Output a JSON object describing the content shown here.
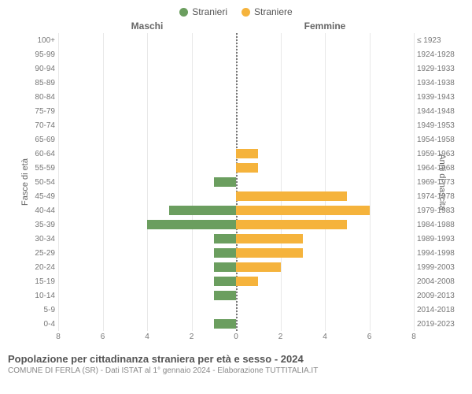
{
  "legend": {
    "male": {
      "label": "Stranieri",
      "color": "#6b9e5f"
    },
    "female": {
      "label": "Straniere",
      "color": "#f5b33c"
    }
  },
  "headers": {
    "left": "Maschi",
    "right": "Femmine"
  },
  "axis_titles": {
    "left": "Fasce di età",
    "right": "Anni di nascita"
  },
  "chart": {
    "type": "population-pyramid",
    "x_max": 8,
    "x_ticks": [
      8,
      6,
      4,
      2,
      0,
      2,
      4,
      6,
      8
    ],
    "background_color": "#ffffff",
    "grid_color": "#e8e8e8",
    "center_line_color": "#777777",
    "bar_male_color": "#6b9e5f",
    "bar_female_color": "#f5b33c",
    "label_fontsize": 10,
    "rows": [
      {
        "age": "100+",
        "birth": "≤ 1923",
        "m": 0,
        "f": 0
      },
      {
        "age": "95-99",
        "birth": "1924-1928",
        "m": 0,
        "f": 0
      },
      {
        "age": "90-94",
        "birth": "1929-1933",
        "m": 0,
        "f": 0
      },
      {
        "age": "85-89",
        "birth": "1934-1938",
        "m": 0,
        "f": 0
      },
      {
        "age": "80-84",
        "birth": "1939-1943",
        "m": 0,
        "f": 0
      },
      {
        "age": "75-79",
        "birth": "1944-1948",
        "m": 0,
        "f": 0
      },
      {
        "age": "70-74",
        "birth": "1949-1953",
        "m": 0,
        "f": 0
      },
      {
        "age": "65-69",
        "birth": "1954-1958",
        "m": 0,
        "f": 0
      },
      {
        "age": "60-64",
        "birth": "1959-1963",
        "m": 0,
        "f": 1
      },
      {
        "age": "55-59",
        "birth": "1964-1968",
        "m": 0,
        "f": 1
      },
      {
        "age": "50-54",
        "birth": "1969-1973",
        "m": 1,
        "f": 0
      },
      {
        "age": "45-49",
        "birth": "1974-1978",
        "m": 0,
        "f": 5
      },
      {
        "age": "40-44",
        "birth": "1979-1983",
        "m": 3,
        "f": 6
      },
      {
        "age": "35-39",
        "birth": "1984-1988",
        "m": 4,
        "f": 5
      },
      {
        "age": "30-34",
        "birth": "1989-1993",
        "m": 1,
        "f": 3
      },
      {
        "age": "25-29",
        "birth": "1994-1998",
        "m": 1,
        "f": 3
      },
      {
        "age": "20-24",
        "birth": "1999-2003",
        "m": 1,
        "f": 2
      },
      {
        "age": "15-19",
        "birth": "2004-2008",
        "m": 1,
        "f": 1
      },
      {
        "age": "10-14",
        "birth": "2009-2013",
        "m": 1,
        "f": 0
      },
      {
        "age": "5-9",
        "birth": "2014-2018",
        "m": 0,
        "f": 0
      },
      {
        "age": "0-4",
        "birth": "2019-2023",
        "m": 1,
        "f": 0
      }
    ]
  },
  "footer": {
    "title": "Popolazione per cittadinanza straniera per età e sesso - 2024",
    "subtitle": "COMUNE DI FERLA (SR) - Dati ISTAT al 1° gennaio 2024 - Elaborazione TUTTITALIA.IT"
  }
}
